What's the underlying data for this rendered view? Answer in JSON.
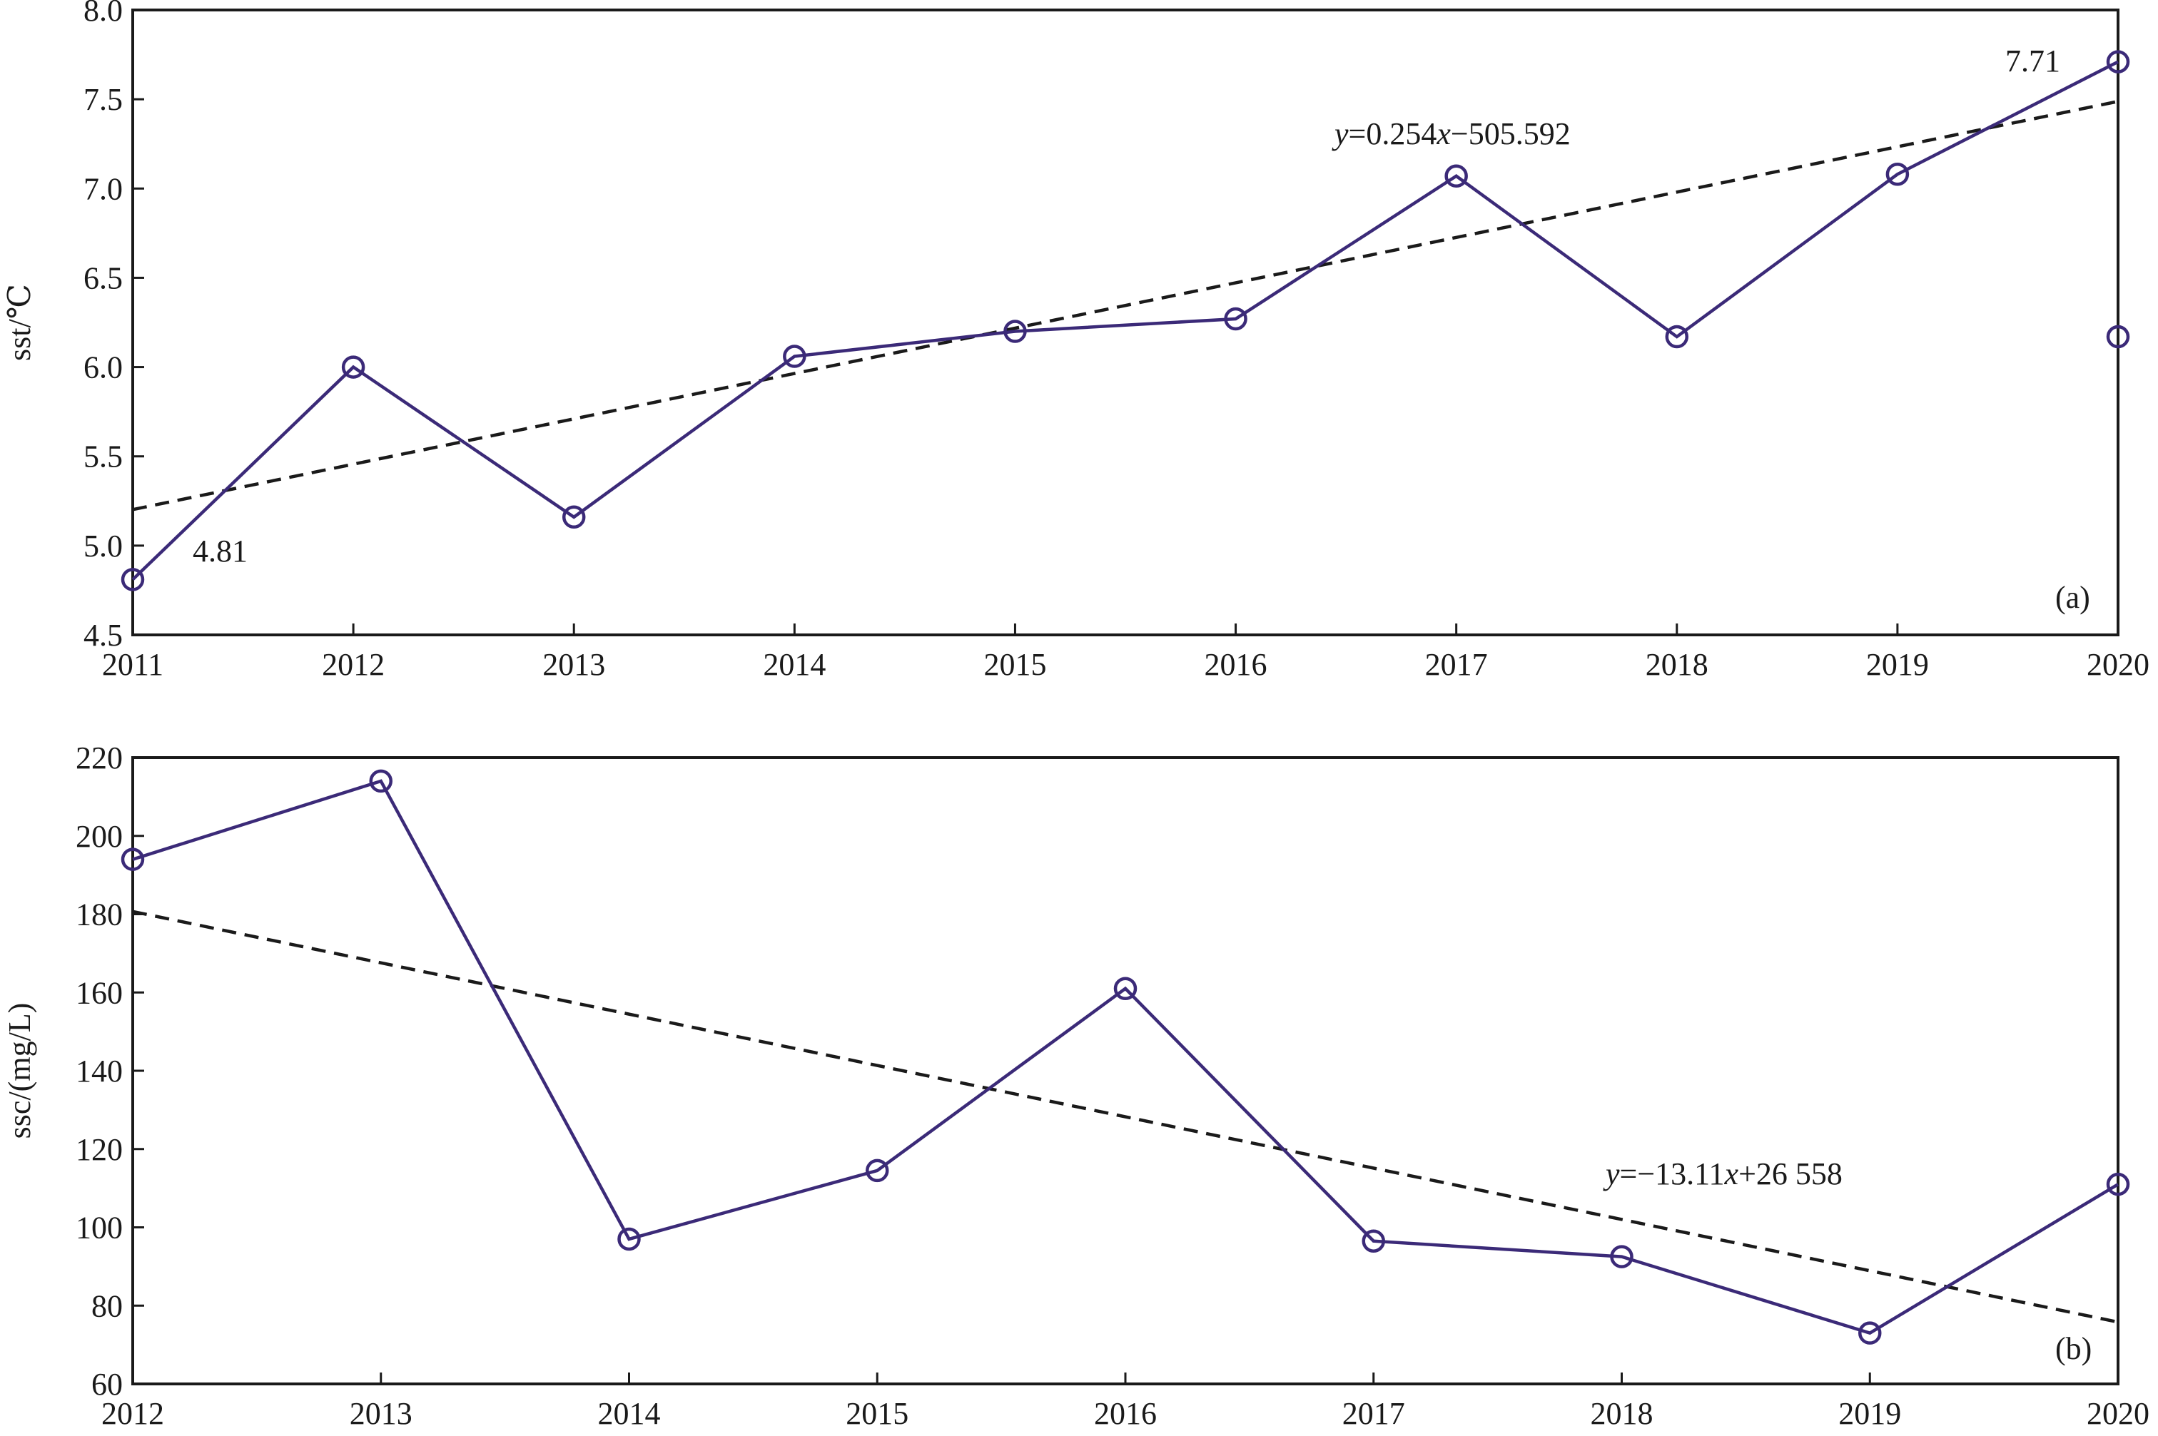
{
  "colors": {
    "series": "#3b2a78",
    "axis": "#1a1a1a",
    "trend": "#1a1a1a"
  },
  "chart_data": [
    {
      "type": "line",
      "panel_label": "(a)",
      "ylabel": "sst/℃",
      "xlabel": "",
      "x": [
        2011,
        2012,
        2013,
        2014,
        2015,
        2016,
        2017,
        2018,
        2019,
        2020
      ],
      "x_tick_labels": [
        "2011",
        "2012",
        "2013",
        "2014",
        "2015",
        "2016",
        "2017",
        "2018",
        "2019",
        "2020"
      ],
      "ylim": [
        4.5,
        8.0
      ],
      "y_ticks": [
        4.5,
        5.0,
        5.5,
        6.0,
        6.5,
        7.0,
        7.5,
        8.0
      ],
      "y_tick_labels": [
        "4.5",
        "5.0",
        "5.5",
        "6.0",
        "6.5",
        "7.0",
        "7.5",
        "8.0"
      ],
      "series": [
        {
          "values": [
            4.81,
            6.0,
            5.16,
            6.06,
            6.2,
            6.27,
            7.07,
            6.17,
            7.08,
            7.71
          ]
        }
      ],
      "extra_points": [
        {
          "x": 2020,
          "y": 6.17
        }
      ],
      "trendline": {
        "slope": 0.254,
        "intercept": -505.592,
        "equation_parts": [
          "y",
          "=0.254",
          "x",
          "−505.592"
        ]
      },
      "annotations": [
        {
          "text": "4.81",
          "x": 2011,
          "y": 4.81
        },
        {
          "text": "7.71",
          "x": 2020,
          "y": 7.71
        }
      ],
      "grid": false,
      "legend": "none"
    },
    {
      "type": "line",
      "panel_label": "(b)",
      "ylabel": "ssc/(mg/L)",
      "xlabel": "",
      "x": [
        2012,
        2013,
        2014,
        2015,
        2016,
        2017,
        2018,
        2019,
        2020
      ],
      "x_tick_labels": [
        "2012",
        "2013",
        "2014",
        "2015",
        "2016",
        "2017",
        "2018",
        "2019",
        "2020"
      ],
      "ylim": [
        60,
        220
      ],
      "y_ticks": [
        60,
        80,
        100,
        120,
        140,
        160,
        180,
        200,
        220
      ],
      "y_tick_labels": [
        "60",
        "80",
        "100",
        "120",
        "140",
        "160",
        "180",
        "200",
        "220"
      ],
      "series": [
        {
          "values": [
            194,
            214,
            97,
            114.5,
            161,
            96.5,
            92.5,
            73,
            111
          ]
        }
      ],
      "extra_points": [],
      "trendline": {
        "slope": -13.11,
        "intercept": 26558,
        "equation_parts": [
          "y",
          "=−13.11",
          "x",
          "+26 558"
        ]
      },
      "annotations": [],
      "grid": false,
      "legend": "none"
    }
  ]
}
